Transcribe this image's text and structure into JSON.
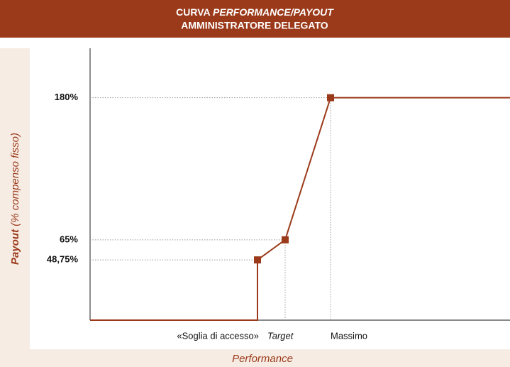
{
  "chart_data": {
    "type": "line",
    "title": {
      "line1": [
        "CURVA",
        "PERFORMANCE/PAYOUT"
      ],
      "line2": "AMMINISTRATORE DELEGATO"
    },
    "y_label": [
      "Payout",
      "(% compenso fisso)"
    ],
    "x_label": "Performance",
    "categories": [
      "«Soglia di accesso»",
      "Target",
      "Massimo"
    ],
    "values": [
      48.75,
      65,
      180
    ],
    "color": "#9b3a1a",
    "ylim": [
      0,
      220
    ],
    "yticks": [
      {
        "value": 180,
        "label": "180%"
      },
      {
        "value": 65,
        "label": "65%"
      },
      {
        "value": 48.75,
        "label": "48,75%"
      }
    ]
  }
}
